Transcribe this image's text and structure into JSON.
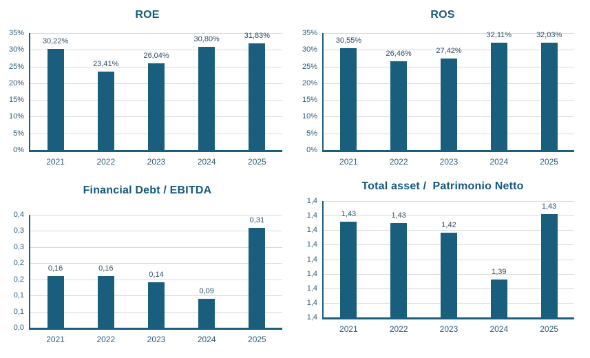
{
  "colors": {
    "bar": "#1A5E7E",
    "axis": "#1A5E7E",
    "grid": "#D9D9D9",
    "title": "#14587D",
    "tick": "#2E5D7D",
    "data_label": "#2F4D66"
  },
  "chart_data": [
    {
      "type": "bar",
      "title": "ROE",
      "categories": [
        "2021",
        "2022",
        "2023",
        "2024",
        "2025"
      ],
      "values": [
        30.22,
        23.41,
        26.04,
        30.8,
        31.83
      ],
      "data_labels": [
        "30,22%",
        "23,41%",
        "26,04%",
        "30,80%",
        "31,83%"
      ],
      "ylim": [
        0,
        35
      ],
      "yticks": [
        {
          "v": 0,
          "label": "0%"
        },
        {
          "v": 5,
          "label": "5%"
        },
        {
          "v": 10,
          "label": "10%"
        },
        {
          "v": 15,
          "label": "15%"
        },
        {
          "v": 20,
          "label": "20%"
        },
        {
          "v": 25,
          "label": "25%"
        },
        {
          "v": 30,
          "label": "30%"
        },
        {
          "v": 35,
          "label": "35%"
        }
      ],
      "grid": true,
      "legend": "none"
    },
    {
      "type": "bar",
      "title": "ROS",
      "categories": [
        "2021",
        "2022",
        "2023",
        "2024",
        "2025"
      ],
      "values": [
        30.55,
        26.46,
        27.42,
        32.11,
        32.03
      ],
      "data_labels": [
        "30,55%",
        "26,46%",
        "27,42%",
        "32,11%",
        "32,03%"
      ],
      "ylim": [
        0,
        35
      ],
      "yticks": [
        {
          "v": 0,
          "label": "0%"
        },
        {
          "v": 5,
          "label": "5%"
        },
        {
          "v": 10,
          "label": "10%"
        },
        {
          "v": 15,
          "label": "15%"
        },
        {
          "v": 20,
          "label": "20%"
        },
        {
          "v": 25,
          "label": "25%"
        },
        {
          "v": 30,
          "label": "30%"
        },
        {
          "v": 35,
          "label": "35%"
        }
      ],
      "grid": true,
      "legend": "none"
    },
    {
      "type": "bar",
      "title": "Financial Debt / EBITDA",
      "categories": [
        "2021",
        "2022",
        "2023",
        "2024",
        "2025"
      ],
      "values": [
        0.16,
        0.16,
        0.14,
        0.09,
        0.31
      ],
      "data_labels": [
        "0,16",
        "0,16",
        "0,14",
        "0,09",
        "0,31"
      ],
      "ylim": [
        0,
        0.35
      ],
      "yticks": [
        {
          "v": 0.0,
          "label": "0,0"
        },
        {
          "v": 0.05,
          "label": "0,1"
        },
        {
          "v": 0.1,
          "label": "0,1"
        },
        {
          "v": 0.15,
          "label": "0,2"
        },
        {
          "v": 0.2,
          "label": "0,2"
        },
        {
          "v": 0.25,
          "label": "0,3"
        },
        {
          "v": 0.3,
          "label": "0,3"
        },
        {
          "v": 0.35,
          "label": "0,4"
        }
      ],
      "grid": true,
      "legend": "none"
    },
    {
      "type": "bar",
      "title": "Total asset /  Patrimonio Netto",
      "categories": [
        "2021",
        "2022",
        "2023",
        "2024",
        "2025"
      ],
      "values": [
        1.43,
        1.43,
        1.42,
        1.39,
        1.43
      ],
      "plot_values": [
        1.426,
        1.425,
        1.418,
        1.386,
        1.431
      ],
      "data_labels": [
        "1,43",
        "1,43",
        "1,42",
        "1,39",
        "1,43"
      ],
      "ylim": [
        1.36,
        1.44
      ],
      "yticks": [
        {
          "v": 1.36,
          "label": "1,4"
        },
        {
          "v": 1.37,
          "label": "1,4"
        },
        {
          "v": 1.38,
          "label": "1,4"
        },
        {
          "v": 1.39,
          "label": "1,4"
        },
        {
          "v": 1.4,
          "label": "1,4"
        },
        {
          "v": 1.41,
          "label": "1,4"
        },
        {
          "v": 1.42,
          "label": "1,4"
        },
        {
          "v": 1.43,
          "label": "1,4"
        },
        {
          "v": 1.44,
          "label": "1,4"
        }
      ],
      "grid": true,
      "legend": "none"
    }
  ]
}
